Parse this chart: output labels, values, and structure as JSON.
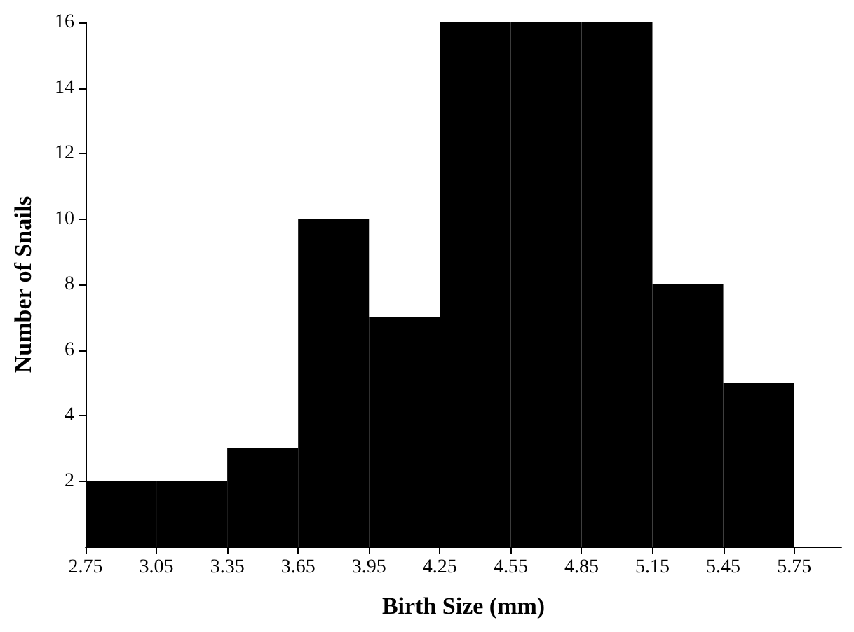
{
  "chart_data": {
    "type": "histogram",
    "xlabel": "Birth Size (mm)",
    "ylabel": "Number of Snails",
    "color": "#000000",
    "bins": [
      2.75,
      3.05,
      3.35,
      3.65,
      3.95,
      4.25,
      4.55,
      4.85,
      5.15,
      5.45,
      5.75
    ],
    "values": [
      2,
      2,
      3,
      10,
      7,
      16,
      16,
      16,
      8,
      5
    ],
    "xlim": [
      2.75,
      5.95
    ],
    "xticks": [
      2.75,
      3.05,
      3.35,
      3.65,
      3.95,
      4.25,
      4.55,
      4.85,
      5.15,
      5.45,
      5.75
    ],
    "ylim": [
      0,
      16
    ],
    "yticks": [
      2,
      4,
      6,
      8,
      10,
      12,
      14,
      16
    ]
  }
}
